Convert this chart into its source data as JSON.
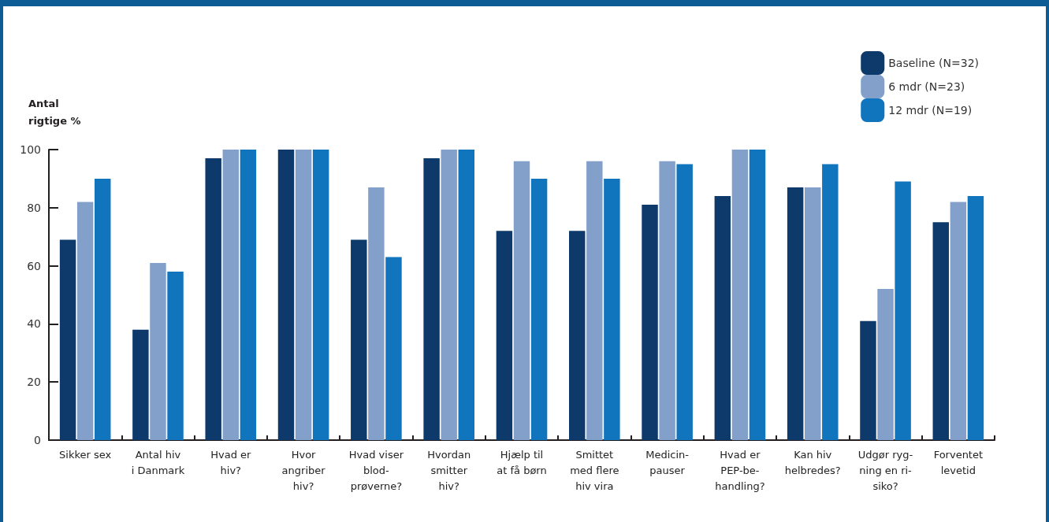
{
  "chart_data": {
    "type": "bar",
    "ylabel": "Antal\nrigtige %",
    "categories": [
      "Sikker sex",
      "Antal hiv\ni Danmark",
      "Hvad er\nhiv?",
      "Hvor\nangriber\nhiv?",
      "Hvad viser\nblod-\nprøverne?",
      "Hvordan\nsmitter\nhiv?",
      "Hjælp til\nat få børn",
      "Smittet\nmed flere\nhiv vira",
      "Medicin-\npauser",
      "Hvad er\nPEP-be-\nhandling?",
      "Kan hiv\nhelbredes?",
      "Udgør ryg-\nning en ri-\nsiko?",
      "Forventet\nlevetid"
    ],
    "series": [
      {
        "name": "Baseline (N=32)",
        "color": "#0d3a6b",
        "values": [
          69,
          38,
          97,
          100,
          69,
          97,
          72,
          72,
          81,
          84,
          87,
          41,
          75
        ]
      },
      {
        "name": "6 mdr (N=23)",
        "color": "#83a0cb",
        "values": [
          82,
          61,
          100,
          100,
          87,
          100,
          96,
          96,
          96,
          100,
          87,
          52,
          82
        ]
      },
      {
        "name": "12 mdr (N=19)",
        "color": "#1175bd",
        "values": [
          90,
          58,
          100,
          100,
          63,
          100,
          90,
          90,
          95,
          100,
          95,
          89,
          84
        ]
      }
    ],
    "ylim": [
      0,
      100
    ],
    "yticks": [
      0,
      20,
      40,
      60,
      80,
      100
    ],
    "grid": false,
    "legend": "top right"
  }
}
